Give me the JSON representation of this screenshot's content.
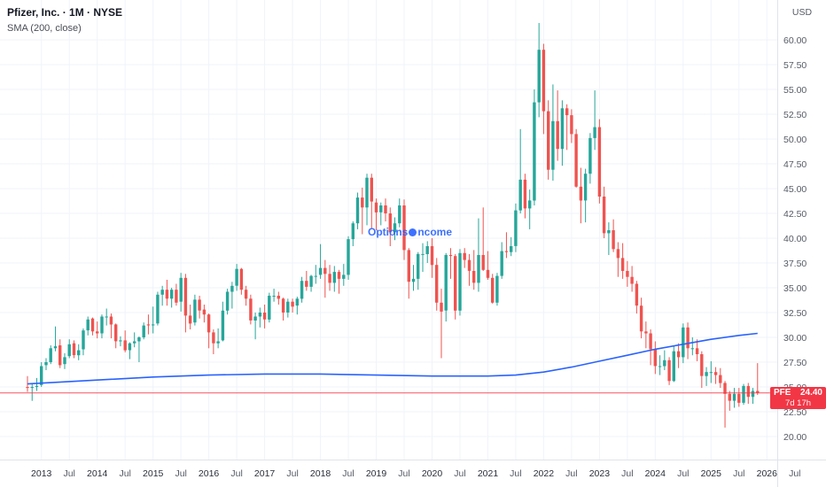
{
  "header": {
    "symbol_title": "Pfizer, Inc. · 1M · NYSE"
  },
  "price_label": {
    "symbol": "PFE",
    "price": "24.40",
    "countdown": "7d 17h"
  },
  "watermark": {
    "text": "OptionsIncome",
    "text_left": "Options",
    "text_right": "ncome",
    "color": "#2962ff"
  },
  "chart_data": {
    "type": "candlestick",
    "title": "Pfizer, Inc. · 1M · NYSE",
    "symbol": "PFE",
    "exchange": "NYSE",
    "timeframe": "1M",
    "interval": "monthly",
    "start_month": "2012-10",
    "candle_order": "open,high,low,close",
    "last_price": 24.4,
    "countdown": "7d 17h",
    "colors": {
      "up": "#26a69a",
      "down": "#ef5350",
      "sma": "#2962ff",
      "down_bright": "#f23645",
      "grid": "#f0f3fa",
      "axis_border": "#e0e3eb"
    },
    "y_axis": {
      "label": "USD",
      "range": [
        19.3,
        62.0
      ],
      "ticks": [
        60,
        57.5,
        55,
        52.5,
        50,
        47.5,
        45,
        42.5,
        40,
        37.5,
        35,
        32.5,
        30,
        27.5,
        25,
        22.5,
        20
      ]
    },
    "x_axis": {
      "ticks": [
        {
          "label": "2013",
          "i": 3,
          "major": true
        },
        {
          "label": "Jul",
          "i": 9,
          "major": false
        },
        {
          "label": "2014",
          "i": 15,
          "major": true
        },
        {
          "label": "Jul",
          "i": 21,
          "major": false
        },
        {
          "label": "2015",
          "i": 27,
          "major": true
        },
        {
          "label": "Jul",
          "i": 33,
          "major": false
        },
        {
          "label": "2016",
          "i": 39,
          "major": true
        },
        {
          "label": "Jul",
          "i": 45,
          "major": false
        },
        {
          "label": "2017",
          "i": 51,
          "major": true
        },
        {
          "label": "Jul",
          "i": 57,
          "major": false
        },
        {
          "label": "2018",
          "i": 63,
          "major": true
        },
        {
          "label": "Jul",
          "i": 69,
          "major": false
        },
        {
          "label": "2019",
          "i": 75,
          "major": true
        },
        {
          "label": "Jul",
          "i": 81,
          "major": false
        },
        {
          "label": "2020",
          "i": 87,
          "major": true
        },
        {
          "label": "Jul",
          "i": 93,
          "major": false
        },
        {
          "label": "2021",
          "i": 99,
          "major": true
        },
        {
          "label": "Jul",
          "i": 105,
          "major": false
        },
        {
          "label": "2022",
          "i": 111,
          "major": true
        },
        {
          "label": "Jul",
          "i": 117,
          "major": false
        },
        {
          "label": "2023",
          "i": 123,
          "major": true
        },
        {
          "label": "Jul",
          "i": 129,
          "major": false
        },
        {
          "label": "2024",
          "i": 135,
          "major": true
        },
        {
          "label": "Jul",
          "i": 141,
          "major": false
        },
        {
          "label": "2025",
          "i": 147,
          "major": true
        },
        {
          "label": "Jul",
          "i": 153,
          "major": false
        },
        {
          "label": "2026",
          "i": 159,
          "major": true
        },
        {
          "label": "Jul",
          "i": 165,
          "major": false
        }
      ]
    },
    "sma": {
      "label": "SMA (200, close)",
      "period": 200,
      "source": "close",
      "points": [
        [
          0,
          25.3
        ],
        [
          15,
          25.7
        ],
        [
          27,
          26.0
        ],
        [
          39,
          26.2
        ],
        [
          51,
          26.3
        ],
        [
          63,
          26.3
        ],
        [
          75,
          26.2
        ],
        [
          87,
          26.1
        ],
        [
          99,
          26.1
        ],
        [
          105,
          26.2
        ],
        [
          111,
          26.5
        ],
        [
          117,
          27.0
        ],
        [
          123,
          27.6
        ],
        [
          129,
          28.2
        ],
        [
          135,
          28.8
        ],
        [
          141,
          29.3
        ],
        [
          147,
          29.8
        ],
        [
          153,
          30.2
        ],
        [
          157,
          30.4
        ]
      ]
    },
    "candles": [
      [
        25.0,
        26.1,
        24.5,
        24.9
      ],
      [
        24.9,
        25.4,
        23.6,
        25.0
      ],
      [
        25.0,
        25.9,
        24.6,
        25.1
      ],
      [
        25.2,
        27.5,
        25.0,
        27.1
      ],
      [
        27.2,
        27.9,
        26.7,
        27.5
      ],
      [
        27.5,
        29.2,
        27.3,
        28.9
      ],
      [
        28.9,
        31.1,
        28.6,
        29.1
      ],
      [
        29.2,
        29.8,
        26.9,
        27.2
      ],
      [
        27.3,
        28.4,
        26.8,
        28.0
      ],
      [
        28.1,
        29.8,
        27.9,
        29.3
      ],
      [
        29.4,
        29.7,
        27.9,
        28.2
      ],
      [
        28.2,
        29.3,
        27.7,
        28.7
      ],
      [
        28.8,
        30.9,
        28.2,
        30.7
      ],
      [
        30.7,
        32.1,
        30.2,
        31.8
      ],
      [
        31.9,
        32.0,
        30.2,
        30.6
      ],
      [
        30.6,
        31.6,
        29.9,
        30.4
      ],
      [
        30.4,
        32.3,
        29.9,
        32.1
      ],
      [
        32.1,
        32.9,
        31.2,
        32.1
      ],
      [
        32.1,
        32.4,
        29.9,
        31.3
      ],
      [
        31.3,
        31.4,
        28.9,
        29.6
      ],
      [
        29.6,
        30.1,
        29.1,
        29.7
      ],
      [
        29.7,
        30.7,
        28.5,
        28.7
      ],
      [
        28.7,
        29.5,
        27.8,
        29.4
      ],
      [
        29.4,
        30.5,
        29.0,
        29.6
      ],
      [
        29.6,
        30.1,
        27.5,
        30.0
      ],
      [
        30.0,
        31.5,
        29.8,
        31.2
      ],
      [
        31.3,
        32.3,
        30.3,
        31.2
      ],
      [
        31.2,
        33.1,
        30.4,
        31.3
      ],
      [
        31.4,
        34.6,
        31.2,
        34.3
      ],
      [
        34.3,
        35.2,
        33.2,
        34.8
      ],
      [
        34.8,
        35.8,
        33.2,
        33.9
      ],
      [
        33.9,
        35.0,
        33.0,
        34.8
      ],
      [
        34.8,
        35.4,
        33.2,
        33.5
      ],
      [
        33.6,
        36.5,
        32.6,
        36.0
      ],
      [
        36.0,
        36.4,
        30.5,
        32.2
      ],
      [
        32.2,
        33.3,
        30.8,
        31.4
      ],
      [
        31.5,
        34.3,
        31.2,
        33.8
      ],
      [
        33.8,
        34.2,
        31.9,
        32.7
      ],
      [
        32.8,
        33.3,
        31.5,
        32.3
      ],
      [
        32.3,
        32.4,
        28.9,
        30.5
      ],
      [
        30.5,
        30.8,
        28.3,
        29.4
      ],
      [
        29.4,
        30.9,
        28.9,
        29.6
      ],
      [
        29.7,
        33.6,
        29.6,
        32.7
      ],
      [
        32.7,
        34.9,
        32.3,
        34.6
      ],
      [
        34.6,
        35.6,
        32.9,
        35.2
      ],
      [
        35.2,
        37.4,
        34.7,
        36.9
      ],
      [
        36.9,
        37.0,
        34.3,
        34.8
      ],
      [
        34.8,
        35.2,
        33.2,
        33.9
      ],
      [
        33.9,
        34.3,
        31.3,
        31.7
      ],
      [
        31.7,
        32.5,
        29.8,
        32.1
      ],
      [
        32.1,
        33.0,
        31.0,
        32.5
      ],
      [
        32.5,
        33.3,
        30.9,
        31.8
      ],
      [
        31.8,
        34.5,
        31.5,
        34.2
      ],
      [
        34.2,
        34.9,
        33.6,
        34.2
      ],
      [
        34.2,
        34.6,
        33.3,
        33.9
      ],
      [
        33.9,
        34.0,
        31.7,
        32.5
      ],
      [
        32.5,
        33.9,
        32.0,
        33.6
      ],
      [
        33.6,
        33.9,
        32.5,
        33.1
      ],
      [
        33.2,
        34.1,
        32.3,
        33.9
      ],
      [
        33.9,
        36.1,
        33.5,
        35.7
      ],
      [
        35.7,
        36.7,
        34.7,
        35.1
      ],
      [
        35.1,
        36.3,
        34.6,
        36.2
      ],
      [
        36.2,
        37.3,
        35.4,
        36.2
      ],
      [
        36.3,
        39.4,
        35.9,
        37.0
      ],
      [
        37.0,
        37.8,
        34.0,
        36.4
      ],
      [
        36.4,
        37.3,
        34.7,
        35.5
      ],
      [
        35.5,
        37.2,
        34.6,
        36.6
      ],
      [
        36.6,
        36.8,
        34.4,
        35.9
      ],
      [
        35.9,
        37.4,
        35.2,
        36.3
      ],
      [
        36.3,
        40.2,
        35.8,
        39.9
      ],
      [
        39.9,
        41.7,
        39.2,
        41.5
      ],
      [
        41.5,
        44.6,
        40.9,
        44.1
      ],
      [
        44.1,
        45.1,
        40.4,
        43.1
      ],
      [
        43.1,
        46.5,
        41.3,
        46.1
      ],
      [
        46.1,
        46.5,
        41.0,
        43.7
      ],
      [
        43.6,
        44.0,
        40.8,
        42.6
      ],
      [
        42.6,
        43.6,
        41.3,
        43.3
      ],
      [
        43.3,
        44.0,
        41.7,
        42.5
      ],
      [
        42.5,
        43.1,
        39.2,
        40.6
      ],
      [
        40.6,
        42.1,
        39.8,
        41.5
      ],
      [
        41.5,
        44.0,
        41.1,
        43.3
      ],
      [
        43.3,
        43.9,
        37.8,
        38.8
      ],
      [
        38.8,
        39.0,
        33.9,
        35.6
      ],
      [
        35.6,
        37.3,
        34.7,
        35.9
      ],
      [
        35.9,
        38.6,
        34.8,
        38.4
      ],
      [
        38.4,
        39.5,
        36.6,
        38.4
      ],
      [
        38.4,
        39.7,
        37.5,
        39.2
      ],
      [
        39.2,
        40.0,
        36.0,
        37.3
      ],
      [
        37.3,
        38.0,
        32.7,
        33.5
      ],
      [
        33.5,
        34.9,
        27.9,
        32.6
      ],
      [
        32.7,
        38.5,
        31.6,
        38.3
      ],
      [
        38.3,
        39.0,
        35.9,
        38.2
      ],
      [
        38.2,
        38.4,
        31.8,
        32.7
      ],
      [
        32.7,
        38.9,
        32.2,
        38.5
      ],
      [
        38.5,
        39.0,
        37.0,
        37.8
      ],
      [
        37.8,
        38.4,
        35.2,
        36.7
      ],
      [
        36.7,
        38.8,
        34.8,
        35.5
      ],
      [
        35.5,
        42.0,
        34.6,
        38.3
      ],
      [
        38.3,
        43.1,
        36.7,
        36.8
      ],
      [
        36.8,
        38.7,
        35.8,
        36.0
      ],
      [
        36.0,
        36.4,
        33.4,
        33.5
      ],
      [
        33.5,
        36.5,
        33.2,
        36.2
      ],
      [
        36.2,
        39.6,
        35.9,
        38.7
      ],
      [
        38.7,
        40.6,
        38.0,
        38.6
      ],
      [
        38.6,
        40.1,
        38.2,
        39.2
      ],
      [
        39.2,
        43.5,
        38.6,
        42.8
      ],
      [
        42.8,
        51.0,
        42.5,
        45.9
      ],
      [
        45.9,
        46.5,
        42.0,
        43.0
      ],
      [
        43.0,
        44.9,
        40.9,
        43.8
      ],
      [
        43.8,
        55.0,
        43.3,
        53.7
      ],
      [
        53.7,
        61.7,
        52.2,
        59.0
      ],
      [
        59.0,
        59.6,
        50.5,
        52.8
      ],
      [
        52.8,
        53.9,
        45.9,
        46.9
      ],
      [
        46.9,
        55.5,
        45.8,
        51.8
      ],
      [
        51.8,
        54.9,
        47.8,
        49.0
      ],
      [
        49.0,
        53.9,
        47.3,
        53.1
      ],
      [
        53.1,
        53.5,
        48.9,
        52.4
      ],
      [
        52.4,
        53.0,
        49.6,
        50.5
      ],
      [
        50.5,
        51.0,
        45.1,
        45.2
      ],
      [
        45.2,
        47.1,
        41.5,
        43.8
      ],
      [
        43.8,
        47.0,
        41.6,
        46.5
      ],
      [
        46.5,
        50.6,
        45.5,
        50.1
      ],
      [
        50.1,
        54.9,
        48.9,
        51.2
      ],
      [
        51.2,
        52.0,
        43.5,
        44.2
      ],
      [
        44.2,
        45.2,
        40.0,
        40.5
      ],
      [
        40.5,
        41.6,
        38.3,
        40.8
      ],
      [
        40.8,
        41.9,
        38.6,
        38.9
      ],
      [
        38.9,
        39.6,
        36.1,
        38.0
      ],
      [
        38.0,
        39.5,
        35.9,
        36.7
      ],
      [
        36.7,
        37.7,
        35.1,
        36.1
      ],
      [
        36.1,
        37.2,
        34.6,
        35.4
      ],
      [
        35.4,
        35.7,
        32.4,
        33.2
      ],
      [
        33.2,
        34.0,
        29.9,
        30.6
      ],
      [
        30.6,
        31.6,
        28.9,
        30.4
      ],
      [
        30.4,
        30.8,
        27.2,
        28.8
      ],
      [
        28.8,
        29.6,
        26.3,
        27.1
      ],
      [
        27.1,
        28.2,
        26.2,
        27.1
      ],
      [
        27.1,
        28.7,
        26.7,
        27.7
      ],
      [
        27.7,
        28.0,
        25.2,
        25.6
      ],
      [
        25.6,
        29.2,
        25.5,
        28.6
      ],
      [
        28.6,
        29.4,
        26.9,
        28.0
      ],
      [
        28.0,
        31.4,
        27.4,
        31.0
      ],
      [
        31.0,
        31.5,
        27.8,
        28.9
      ],
      [
        28.9,
        30.0,
        28.2,
        28.9
      ],
      [
        28.9,
        29.8,
        27.6,
        28.3
      ],
      [
        28.3,
        28.6,
        24.9,
        26.1
      ],
      [
        26.1,
        27.0,
        25.1,
        26.5
      ],
      [
        26.5,
        27.6,
        25.4,
        26.5
      ],
      [
        26.5,
        27.0,
        25.3,
        26.2
      ],
      [
        26.2,
        26.9,
        24.9,
        25.4
      ],
      [
        25.4,
        25.6,
        20.9,
        24.3
      ],
      [
        24.3,
        24.6,
        22.6,
        23.6
      ],
      [
        23.6,
        24.9,
        22.9,
        24.3
      ],
      [
        24.3,
        24.9,
        23.0,
        23.4
      ],
      [
        23.4,
        25.3,
        23.2,
        25.1
      ],
      [
        25.1,
        25.4,
        23.3,
        24.0
      ],
      [
        24.0,
        24.9,
        23.3,
        24.6
      ],
      [
        24.6,
        27.4,
        24.2,
        24.4
      ]
    ]
  }
}
